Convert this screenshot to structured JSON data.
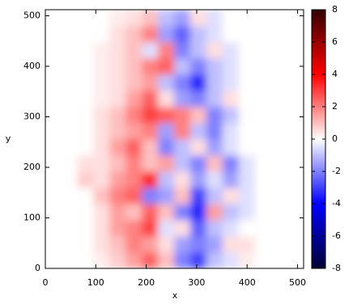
{
  "chart_data": {
    "type": "heatmap",
    "xlabel": "x",
    "ylabel": "y",
    "x": [
      0,
      32,
      64,
      96,
      128,
      160,
      192,
      224,
      256,
      288,
      320,
      352,
      384,
      416,
      448,
      480,
      512
    ],
    "y": [
      0,
      32,
      64,
      96,
      128,
      160,
      192,
      224,
      256,
      288,
      320,
      352,
      384,
      416,
      448,
      480,
      512
    ],
    "z": [
      [
        0,
        0,
        0,
        0.3,
        0.8,
        1.5,
        2.5,
        1,
        -2,
        -3,
        -1,
        -0.5,
        0.3,
        0,
        0,
        0
      ],
      [
        0,
        0,
        0,
        0.5,
        1,
        2,
        1.5,
        0.5,
        -1.5,
        -2,
        -1.5,
        0.5,
        0.5,
        0,
        0,
        0
      ],
      [
        0,
        0,
        0,
        0.5,
        1.5,
        2,
        3,
        -0.5,
        0.5,
        -2.5,
        -1,
        -0.5,
        0,
        0,
        0,
        0
      ],
      [
        0,
        0,
        0,
        0.5,
        1.5,
        1,
        2.5,
        1,
        -2,
        -3.5,
        1.5,
        -1,
        -0.5,
        0,
        0,
        0
      ],
      [
        0,
        0,
        0,
        1,
        2,
        2.5,
        -2,
        -1.5,
        1,
        -3,
        -1,
        0.5,
        -0.5,
        0,
        0,
        0
      ],
      [
        0,
        0,
        0.8,
        0.5,
        1.5,
        2,
        3.5,
        -1,
        0.5,
        -1.5,
        -0.5,
        -1.5,
        -0.5,
        0,
        0,
        0
      ],
      [
        0,
        0,
        0.5,
        0.5,
        1,
        2,
        1,
        1.5,
        -1,
        -2,
        1,
        -2,
        -0.5,
        0,
        0,
        0
      ],
      [
        0,
        0,
        0,
        0.5,
        1.5,
        2.5,
        1,
        -2,
        -1,
        0.5,
        -1.5,
        -0.5,
        0,
        0,
        0,
        0
      ],
      [
        0,
        0,
        0,
        0.5,
        1,
        1.5,
        2,
        -1.5,
        2,
        -1,
        -2,
        -0.5,
        0,
        0,
        0,
        0
      ],
      [
        0,
        0,
        0,
        0.5,
        1,
        2,
        3,
        2.5,
        2,
        1,
        -2,
        -1,
        0,
        0,
        0,
        0
      ],
      [
        0,
        0,
        0,
        0.3,
        0.5,
        1.5,
        2.5,
        0.5,
        -1.5,
        -2,
        -1,
        0.5,
        0,
        0,
        0,
        0
      ],
      [
        0,
        0,
        0,
        0.3,
        0.5,
        1,
        1.5,
        -1,
        -2,
        -3.5,
        -1,
        -0.5,
        0,
        0,
        0,
        0
      ],
      [
        0,
        0,
        0,
        0.3,
        0.5,
        1,
        2,
        2.5,
        -1,
        -2,
        -1,
        -0.5,
        0,
        0,
        0,
        0
      ],
      [
        0,
        0,
        0,
        0.3,
        0.5,
        1,
        -0.5,
        2,
        -2,
        -1,
        0.5,
        -0.5,
        0,
        0,
        0,
        0
      ],
      [
        0,
        0,
        0,
        0,
        0.5,
        1,
        2,
        -1.5,
        -2.5,
        -1,
        -0.5,
        0,
        0,
        0,
        0,
        0
      ],
      [
        0,
        0,
        0,
        0,
        0.3,
        0.5,
        1,
        -1,
        -1.5,
        0.5,
        -0.5,
        0,
        0,
        0,
        0,
        0
      ]
    ],
    "xlim": [
      0,
      512
    ],
    "ylim": [
      0,
      512
    ],
    "xticks": [
      0,
      100,
      200,
      300,
      400,
      500
    ],
    "yticks": [
      0,
      100,
      200,
      300,
      400,
      500
    ],
    "zlim": [
      -8,
      8
    ],
    "zticks": [
      -8,
      -6,
      -4,
      -2,
      0,
      2,
      4,
      6,
      8
    ],
    "colors": [
      "#000033",
      "#0000ff",
      "#ffffff",
      "#ff0000",
      "#330000"
    ]
  }
}
